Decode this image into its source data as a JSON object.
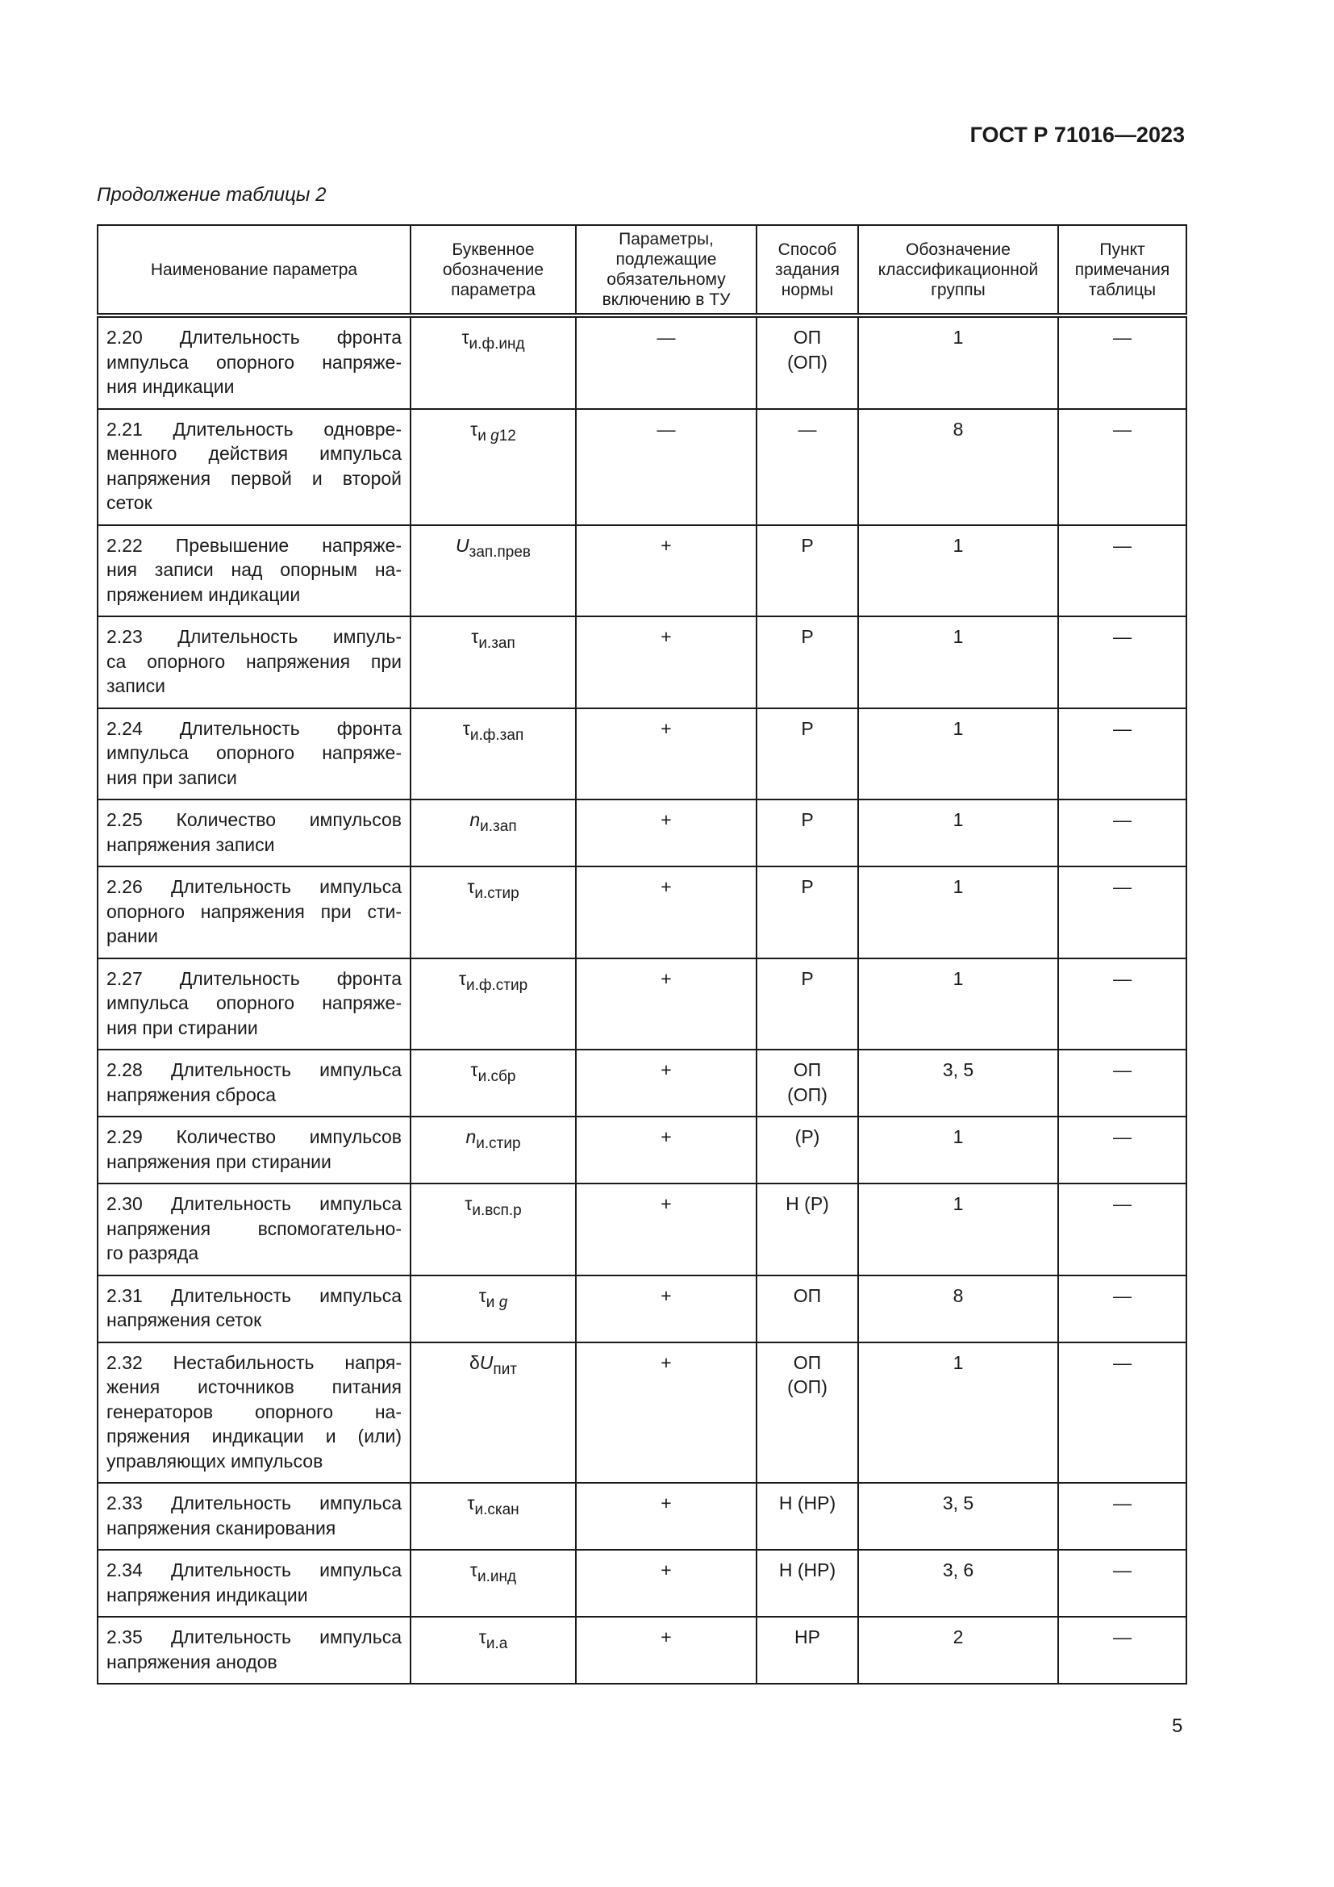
{
  "header": {
    "doc_code": "ГОСТ Р 71016—2023",
    "continuation": "Продолжение таблицы 2"
  },
  "table": {
    "columns": [
      "Наименование параметра",
      "Буквенное обозначение параметра",
      "Параметры, подлежащие обязательному включению в ТУ",
      "Способ задания нормы",
      "Обозначение классификационной группы",
      "Пункт примечания таблицы"
    ],
    "rows": [
      {
        "name_lines": [
          "2.20 Длительность фронта",
          "импульса опорного напряже-",
          "ния индикации"
        ],
        "symbol": {
          "pre": "",
          "base": "τ",
          "base_italic": false,
          "sub": "и.ф.инд",
          "sub_it": "",
          "sub_end": ""
        },
        "tu": "—",
        "method": "ОП\n(ОП)",
        "group": "1",
        "note": "—"
      },
      {
        "name_lines": [
          "2.21 Длительность одновре-",
          "менного действия импульса",
          "напряжения первой и второй",
          "сеток"
        ],
        "symbol": {
          "pre": "",
          "base": "τ",
          "base_italic": false,
          "sub": "и ",
          "sub_it": "g",
          "sub_end": "12"
        },
        "tu": "—",
        "method": "—",
        "group": "8",
        "note": "—"
      },
      {
        "name_lines": [
          "2.22 Превышение напряже-",
          "ния записи над опорным на-",
          "пряжением индикации"
        ],
        "symbol": {
          "pre": "",
          "base": "U",
          "base_italic": true,
          "sub": "зап.прев",
          "sub_it": "",
          "sub_end": ""
        },
        "tu": "+",
        "method": "Р",
        "group": "1",
        "note": "—"
      },
      {
        "name_lines": [
          "2.23 Длительность импуль-",
          "са опорного напряжения при",
          "записи"
        ],
        "symbol": {
          "pre": "",
          "base": "τ",
          "base_italic": false,
          "sub": "и.зап",
          "sub_it": "",
          "sub_end": ""
        },
        "tu": "+",
        "method": "Р",
        "group": "1",
        "note": "—"
      },
      {
        "name_lines": [
          "2.24 Длительность фронта",
          "импульса опорного напряже-",
          "ния при записи"
        ],
        "symbol": {
          "pre": "",
          "base": "τ",
          "base_italic": false,
          "sub": "и.ф.зап",
          "sub_it": "",
          "sub_end": ""
        },
        "tu": "+",
        "method": "Р",
        "group": "1",
        "note": "—"
      },
      {
        "name_lines": [
          "2.25 Количество импульсов",
          "напряжения записи"
        ],
        "symbol": {
          "pre": "",
          "base": "n",
          "base_italic": true,
          "sub": "и.зап",
          "sub_it": "",
          "sub_end": ""
        },
        "tu": "+",
        "method": "Р",
        "group": "1",
        "note": "—"
      },
      {
        "name_lines": [
          "2.26 Длительность импульса",
          "опорного напряжения при сти-",
          "рании"
        ],
        "symbol": {
          "pre": "",
          "base": "τ",
          "base_italic": false,
          "sub": "и.стир",
          "sub_it": "",
          "sub_end": ""
        },
        "tu": "+",
        "method": "Р",
        "group": "1",
        "note": "—"
      },
      {
        "name_lines": [
          "2.27 Длительность фронта",
          "импульса опорного напряже-",
          "ния при стирании"
        ],
        "symbol": {
          "pre": "",
          "base": "τ",
          "base_italic": false,
          "sub": "и.ф.стир",
          "sub_it": "",
          "sub_end": ""
        },
        "tu": "+",
        "method": "Р",
        "group": "1",
        "note": "—"
      },
      {
        "name_lines": [
          "2.28 Длительность импульса",
          "напряжения сброса"
        ],
        "symbol": {
          "pre": "",
          "base": "τ",
          "base_italic": false,
          "sub": "и.сбр",
          "sub_it": "",
          "sub_end": ""
        },
        "tu": "+",
        "method": "ОП\n(ОП)",
        "group": "3, 5",
        "note": "—"
      },
      {
        "name_lines": [
          "2.29 Количество импульсов",
          "напряжения при стирании"
        ],
        "symbol": {
          "pre": "",
          "base": "n",
          "base_italic": true,
          "sub": "и.стир",
          "sub_it": "",
          "sub_end": ""
        },
        "tu": "+",
        "method": "(Р)",
        "group": "1",
        "note": "—"
      },
      {
        "name_lines": [
          "2.30 Длительность импульса",
          "напряжения вспомогательно-",
          "го разряда"
        ],
        "symbol": {
          "pre": "",
          "base": "τ",
          "base_italic": false,
          "sub": "и.всп.р",
          "sub_it": "",
          "sub_end": ""
        },
        "tu": "+",
        "method": "Н (Р)",
        "group": "1",
        "note": "—"
      },
      {
        "name_lines": [
          "2.31 Длительность импульса",
          "напряжения сеток"
        ],
        "symbol": {
          "pre": "",
          "base": "τ",
          "base_italic": false,
          "sub": "и ",
          "sub_it": "g",
          "sub_end": ""
        },
        "tu": "+",
        "method": "ОП",
        "group": "8",
        "note": "—"
      },
      {
        "name_lines": [
          "2.32 Нестабильность напря-",
          "жения источников питания",
          "генераторов опорного на-",
          "пряжения индикации и (или)",
          "управляющих импульсов"
        ],
        "symbol": {
          "pre": "δ",
          "base": "U",
          "base_italic": true,
          "sub": "пит",
          "sub_it": "",
          "sub_end": ""
        },
        "tu": "+",
        "method": "ОП\n(ОП)",
        "group": "1",
        "note": "—"
      },
      {
        "name_lines": [
          "2.33 Длительность импульса",
          "напряжения сканирования"
        ],
        "symbol": {
          "pre": "",
          "base": "τ",
          "base_italic": false,
          "sub": "и.скан",
          "sub_it": "",
          "sub_end": ""
        },
        "tu": "+",
        "method": "Н (НР)",
        "group": "3, 5",
        "note": "—"
      },
      {
        "name_lines": [
          "2.34 Длительность импульса",
          "напряжения индикации"
        ],
        "symbol": {
          "pre": "",
          "base": "τ",
          "base_italic": false,
          "sub": "и.инд",
          "sub_it": "",
          "sub_end": ""
        },
        "tu": "+",
        "method": "Н (НР)",
        "group": "3, 6",
        "note": "—"
      },
      {
        "name_lines": [
          "2.35 Длительность импульса",
          "напряжения анодов"
        ],
        "symbol": {
          "pre": "",
          "base": "τ",
          "base_italic": false,
          "sub": "и.а",
          "sub_it": "",
          "sub_end": ""
        },
        "tu": "+",
        "method": "НР",
        "group": "2",
        "note": "—"
      }
    ]
  },
  "footer": {
    "page_number": "5"
  }
}
